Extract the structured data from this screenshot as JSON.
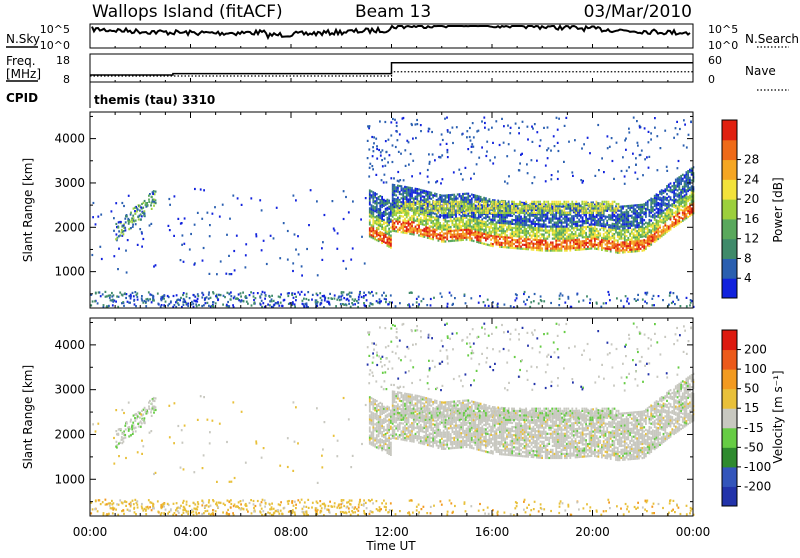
{
  "header": {
    "site": "Wallops Island (fitACF)",
    "beam": "Beam 13",
    "date": "03/Mar/2010"
  },
  "noise_panel": {
    "left_label": "N.Sky",
    "left_ticks": [
      "10^5",
      "10^0"
    ],
    "right_label": "N.Search",
    "right_ticks": [
      "10^5",
      "10^0"
    ]
  },
  "freq_panel": {
    "left_label_line1": "Freq.",
    "left_label_line2": "[MHz]",
    "left_ticks": [
      "18",
      "8"
    ],
    "right_label": "Nave",
    "right_ticks": [
      "60",
      "0"
    ],
    "freq_steps": [
      {
        "hour": 0.0,
        "mhz": 10.7
      },
      {
        "hour": 3.3,
        "mhz": 11.2
      },
      {
        "hour": 12.0,
        "mhz": 15.4
      },
      {
        "hour": 24.0,
        "mhz": 15.4
      }
    ]
  },
  "cpid_panel": {
    "label": "CPID",
    "program": "themis (tau) 3310"
  },
  "chart_data": [
    {
      "type": "heatmap",
      "name": "power",
      "ylabel": "Slant Range [km]",
      "xlim": [
        0,
        24
      ],
      "ylim": [
        180,
        4600
      ],
      "xticks": [
        "00:00",
        "04:00",
        "08:00",
        "12:00",
        "16:00",
        "20:00",
        "00:00"
      ],
      "yticks": [
        1000,
        2000,
        3000,
        4000
      ],
      "colorbar": {
        "label": "Power [dB]",
        "ticks": [
          "4",
          "8",
          "12",
          "16",
          "20",
          "24",
          "28"
        ],
        "colors": [
          "#1122dd",
          "#2a5fb0",
          "#3f8a6a",
          "#59a85c",
          "#9ccf3c",
          "#f3e23a",
          "#f5a623",
          "#ee6a18",
          "#e02010"
        ]
      }
    },
    {
      "type": "heatmap",
      "name": "velocity",
      "ylabel": "Slant Range [km]",
      "xlim": [
        0,
        24
      ],
      "ylim": [
        180,
        4600
      ],
      "xticks": [
        "00:00",
        "04:00",
        "08:00",
        "12:00",
        "16:00",
        "20:00",
        "00:00"
      ],
      "yticks": [
        1000,
        2000,
        3000,
        4000
      ],
      "xlabel": "Time UT",
      "colorbar": {
        "label": "Velocity [m s⁻¹]",
        "ticks": [
          "200",
          "100",
          "50",
          "15",
          "-15",
          "-50",
          "-100",
          "-200"
        ],
        "colors": [
          "#2233aa",
          "#3355bb",
          "#2e8a2e",
          "#66cc44",
          "#c8c8c0",
          "#e8c03a",
          "#f29a20",
          "#ec5a1a",
          "#dd1a10"
        ]
      }
    }
  ]
}
